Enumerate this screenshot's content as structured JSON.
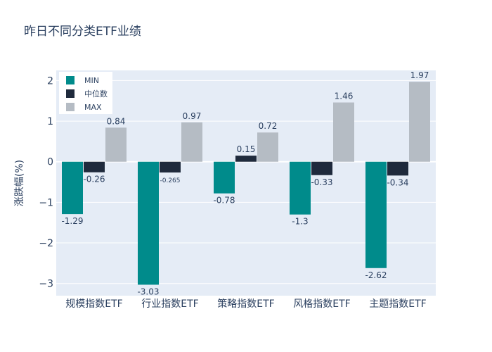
{
  "chart_data": {
    "type": "bar",
    "title": "昨日不同分类ETF业绩",
    "xlabel": "",
    "ylabel": "涨跌幅(%)",
    "ylim": [
      -3.3,
      2.25
    ],
    "yticks": [
      2,
      1,
      0,
      -1,
      -2,
      -3
    ],
    "ytick_labels": [
      "2",
      "1",
      "0",
      "−1",
      "−2",
      "−3"
    ],
    "grid": true,
    "legend_position": "top-left",
    "categories": [
      "规模指数ETF",
      "行业指数ETF",
      "策略指数ETF",
      "风格指数ETF",
      "主题指数ETF"
    ],
    "series": [
      {
        "name": "MIN",
        "color": "#008b8b",
        "values": [
          -1.29,
          -3.03,
          -0.78,
          -1.3,
          -2.62
        ],
        "labels": [
          "-1.29",
          "-3.03",
          "-0.78",
          "-1.3",
          "-2.62"
        ]
      },
      {
        "name": "中位数",
        "color": "#1f2a3c",
        "values": [
          -0.26,
          -0.265,
          0.15,
          -0.33,
          -0.34
        ],
        "labels": [
          "-0.26",
          "-0.265",
          "0.15",
          "-0.33",
          "-0.34"
        ]
      },
      {
        "name": "MAX",
        "color": "#b5bcc4",
        "values": [
          0.84,
          0.97,
          0.72,
          1.46,
          1.97
        ],
        "labels": [
          "0.84",
          "0.97",
          "0.72",
          "1.46",
          "1.97"
        ]
      }
    ]
  }
}
